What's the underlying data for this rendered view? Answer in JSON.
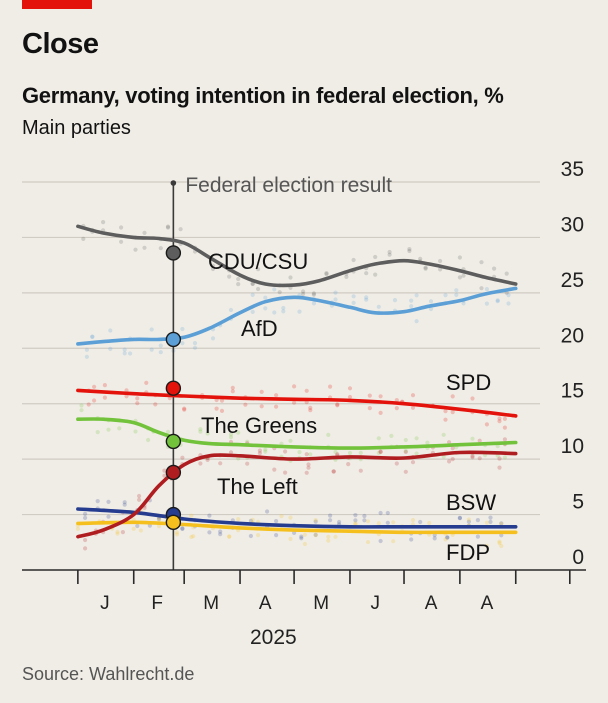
{
  "header": {
    "title": "Close",
    "subtitle": "Germany, voting intention in federal election, %",
    "subsubtitle": "Main parties"
  },
  "source": "Source: Wahlrecht.de",
  "colors": {
    "background": "#f0ede6",
    "gridline": "#d0ccc4",
    "axis": "#2a2a2a",
    "CDU/CSU": "#5d5d5d",
    "AfD": "#5b9fd6",
    "SPD": "#e3120b",
    "The Greens": "#72c23c",
    "The Left": "#b01d20",
    "BSW": "#253c8f",
    "FDP": "#f5c01d"
  },
  "chart_data": {
    "type": "line",
    "title": "Germany, voting intention in federal election, %",
    "subtitle": "Main parties",
    "ylim": [
      0,
      35
    ],
    "yticks": [
      "0",
      "5",
      "10",
      "15",
      "20",
      "25",
      "30",
      "35"
    ],
    "y_axis_position": "right",
    "grid": true,
    "xlabel": "2025",
    "x_range": [
      "2024-12-01",
      "2025-09-30"
    ],
    "month_labels": [
      {
        "label": "J",
        "date": "2025-01-16"
      },
      {
        "label": "F",
        "date": "2025-02-14"
      },
      {
        "label": "M",
        "date": "2025-03-16"
      },
      {
        "label": "A",
        "date": "2025-04-15"
      },
      {
        "label": "M",
        "date": "2025-05-16"
      },
      {
        "label": "J",
        "date": "2025-06-15"
      },
      {
        "label": "A",
        "date": "2025-07-16"
      },
      {
        "label": "A",
        "date": "2025-08-16"
      }
    ],
    "month_ticks": [
      "2025-01-01",
      "2025-02-01",
      "2025-03-01",
      "2025-04-01",
      "2025-05-01",
      "2025-06-01",
      "2025-07-01",
      "2025-08-01",
      "2025-09-01",
      "2025-10-01"
    ],
    "annotation": {
      "label": "Federal election result",
      "date": "2025-02-23"
    },
    "series": [
      {
        "name": "CDU/CSU",
        "x": [
          "2025-01-01",
          "2025-01-15",
          "2025-02-01",
          "2025-02-15",
          "2025-03-01",
          "2025-03-15",
          "2025-04-01",
          "2025-04-15",
          "2025-05-01",
          "2025-05-15",
          "2025-06-01",
          "2025-06-15",
          "2025-07-01",
          "2025-07-15",
          "2025-08-01",
          "2025-08-15",
          "2025-09-01"
        ],
        "values": [
          31.0,
          30.4,
          30.0,
          29.9,
          29.5,
          28.2,
          26.6,
          25.8,
          25.7,
          26.1,
          27.0,
          27.6,
          27.9,
          27.6,
          27.0,
          26.4,
          25.8
        ],
        "election_result": 28.6
      },
      {
        "name": "AfD",
        "x": [
          "2025-01-01",
          "2025-01-15",
          "2025-02-01",
          "2025-02-15",
          "2025-03-01",
          "2025-03-15",
          "2025-04-01",
          "2025-04-15",
          "2025-05-01",
          "2025-05-15",
          "2025-06-01",
          "2025-06-15",
          "2025-07-01",
          "2025-07-15",
          "2025-08-01",
          "2025-08-15",
          "2025-09-01"
        ],
        "values": [
          20.4,
          20.6,
          20.8,
          20.8,
          21.0,
          21.8,
          23.2,
          24.2,
          24.6,
          24.3,
          23.7,
          23.2,
          23.3,
          23.8,
          24.3,
          24.9,
          25.4
        ],
        "election_result": 20.8
      },
      {
        "name": "SPD",
        "x": [
          "2025-01-01",
          "2025-02-01",
          "2025-03-01",
          "2025-04-01",
          "2025-05-01",
          "2025-06-01",
          "2025-07-01",
          "2025-08-01",
          "2025-09-01"
        ],
        "values": [
          16.2,
          15.9,
          15.7,
          15.5,
          15.4,
          15.3,
          15.0,
          14.5,
          13.9
        ],
        "election_result": 16.4
      },
      {
        "name": "The Greens",
        "x": [
          "2025-01-01",
          "2025-01-15",
          "2025-02-01",
          "2025-02-15",
          "2025-03-01",
          "2025-03-15",
          "2025-04-01",
          "2025-05-01",
          "2025-06-01",
          "2025-07-01",
          "2025-08-01",
          "2025-09-01"
        ],
        "values": [
          13.6,
          13.6,
          13.3,
          12.4,
          11.7,
          11.4,
          11.3,
          11.1,
          11.0,
          11.1,
          11.3,
          11.5
        ],
        "election_result": 11.6
      },
      {
        "name": "The Left",
        "x": [
          "2025-01-01",
          "2025-01-15",
          "2025-02-01",
          "2025-02-15",
          "2025-03-01",
          "2025-03-15",
          "2025-04-01",
          "2025-05-01",
          "2025-06-01",
          "2025-07-01",
          "2025-08-01",
          "2025-09-01"
        ],
        "values": [
          3.0,
          3.6,
          5.0,
          7.6,
          9.5,
          10.3,
          10.3,
          10.0,
          10.2,
          10.1,
          10.6,
          10.5
        ],
        "election_result": 8.8
      },
      {
        "name": "BSW",
        "x": [
          "2025-01-01",
          "2025-02-01",
          "2025-03-01",
          "2025-04-01",
          "2025-05-01",
          "2025-06-01",
          "2025-07-01",
          "2025-08-01",
          "2025-09-01"
        ],
        "values": [
          5.5,
          5.2,
          4.6,
          4.2,
          4.0,
          3.9,
          3.9,
          3.9,
          3.9
        ],
        "election_result": 5.0
      },
      {
        "name": "FDP",
        "x": [
          "2025-01-01",
          "2025-02-01",
          "2025-03-01",
          "2025-04-01",
          "2025-05-01",
          "2025-06-01",
          "2025-07-01",
          "2025-08-01",
          "2025-09-01"
        ],
        "values": [
          4.2,
          4.3,
          4.1,
          3.8,
          3.6,
          3.5,
          3.4,
          3.4,
          3.4
        ],
        "election_result": 4.3
      }
    ],
    "labels": [
      {
        "series": "CDU/CSU",
        "text": "CDU/CSU"
      },
      {
        "series": "AfD",
        "text": "AfD"
      },
      {
        "series": "SPD",
        "text": "SPD"
      },
      {
        "series": "The Greens",
        "text": "The Greens"
      },
      {
        "series": "The Left",
        "text": "The Left"
      },
      {
        "series": "BSW",
        "text": "BSW"
      },
      {
        "series": "FDP",
        "text": "FDP"
      }
    ]
  }
}
